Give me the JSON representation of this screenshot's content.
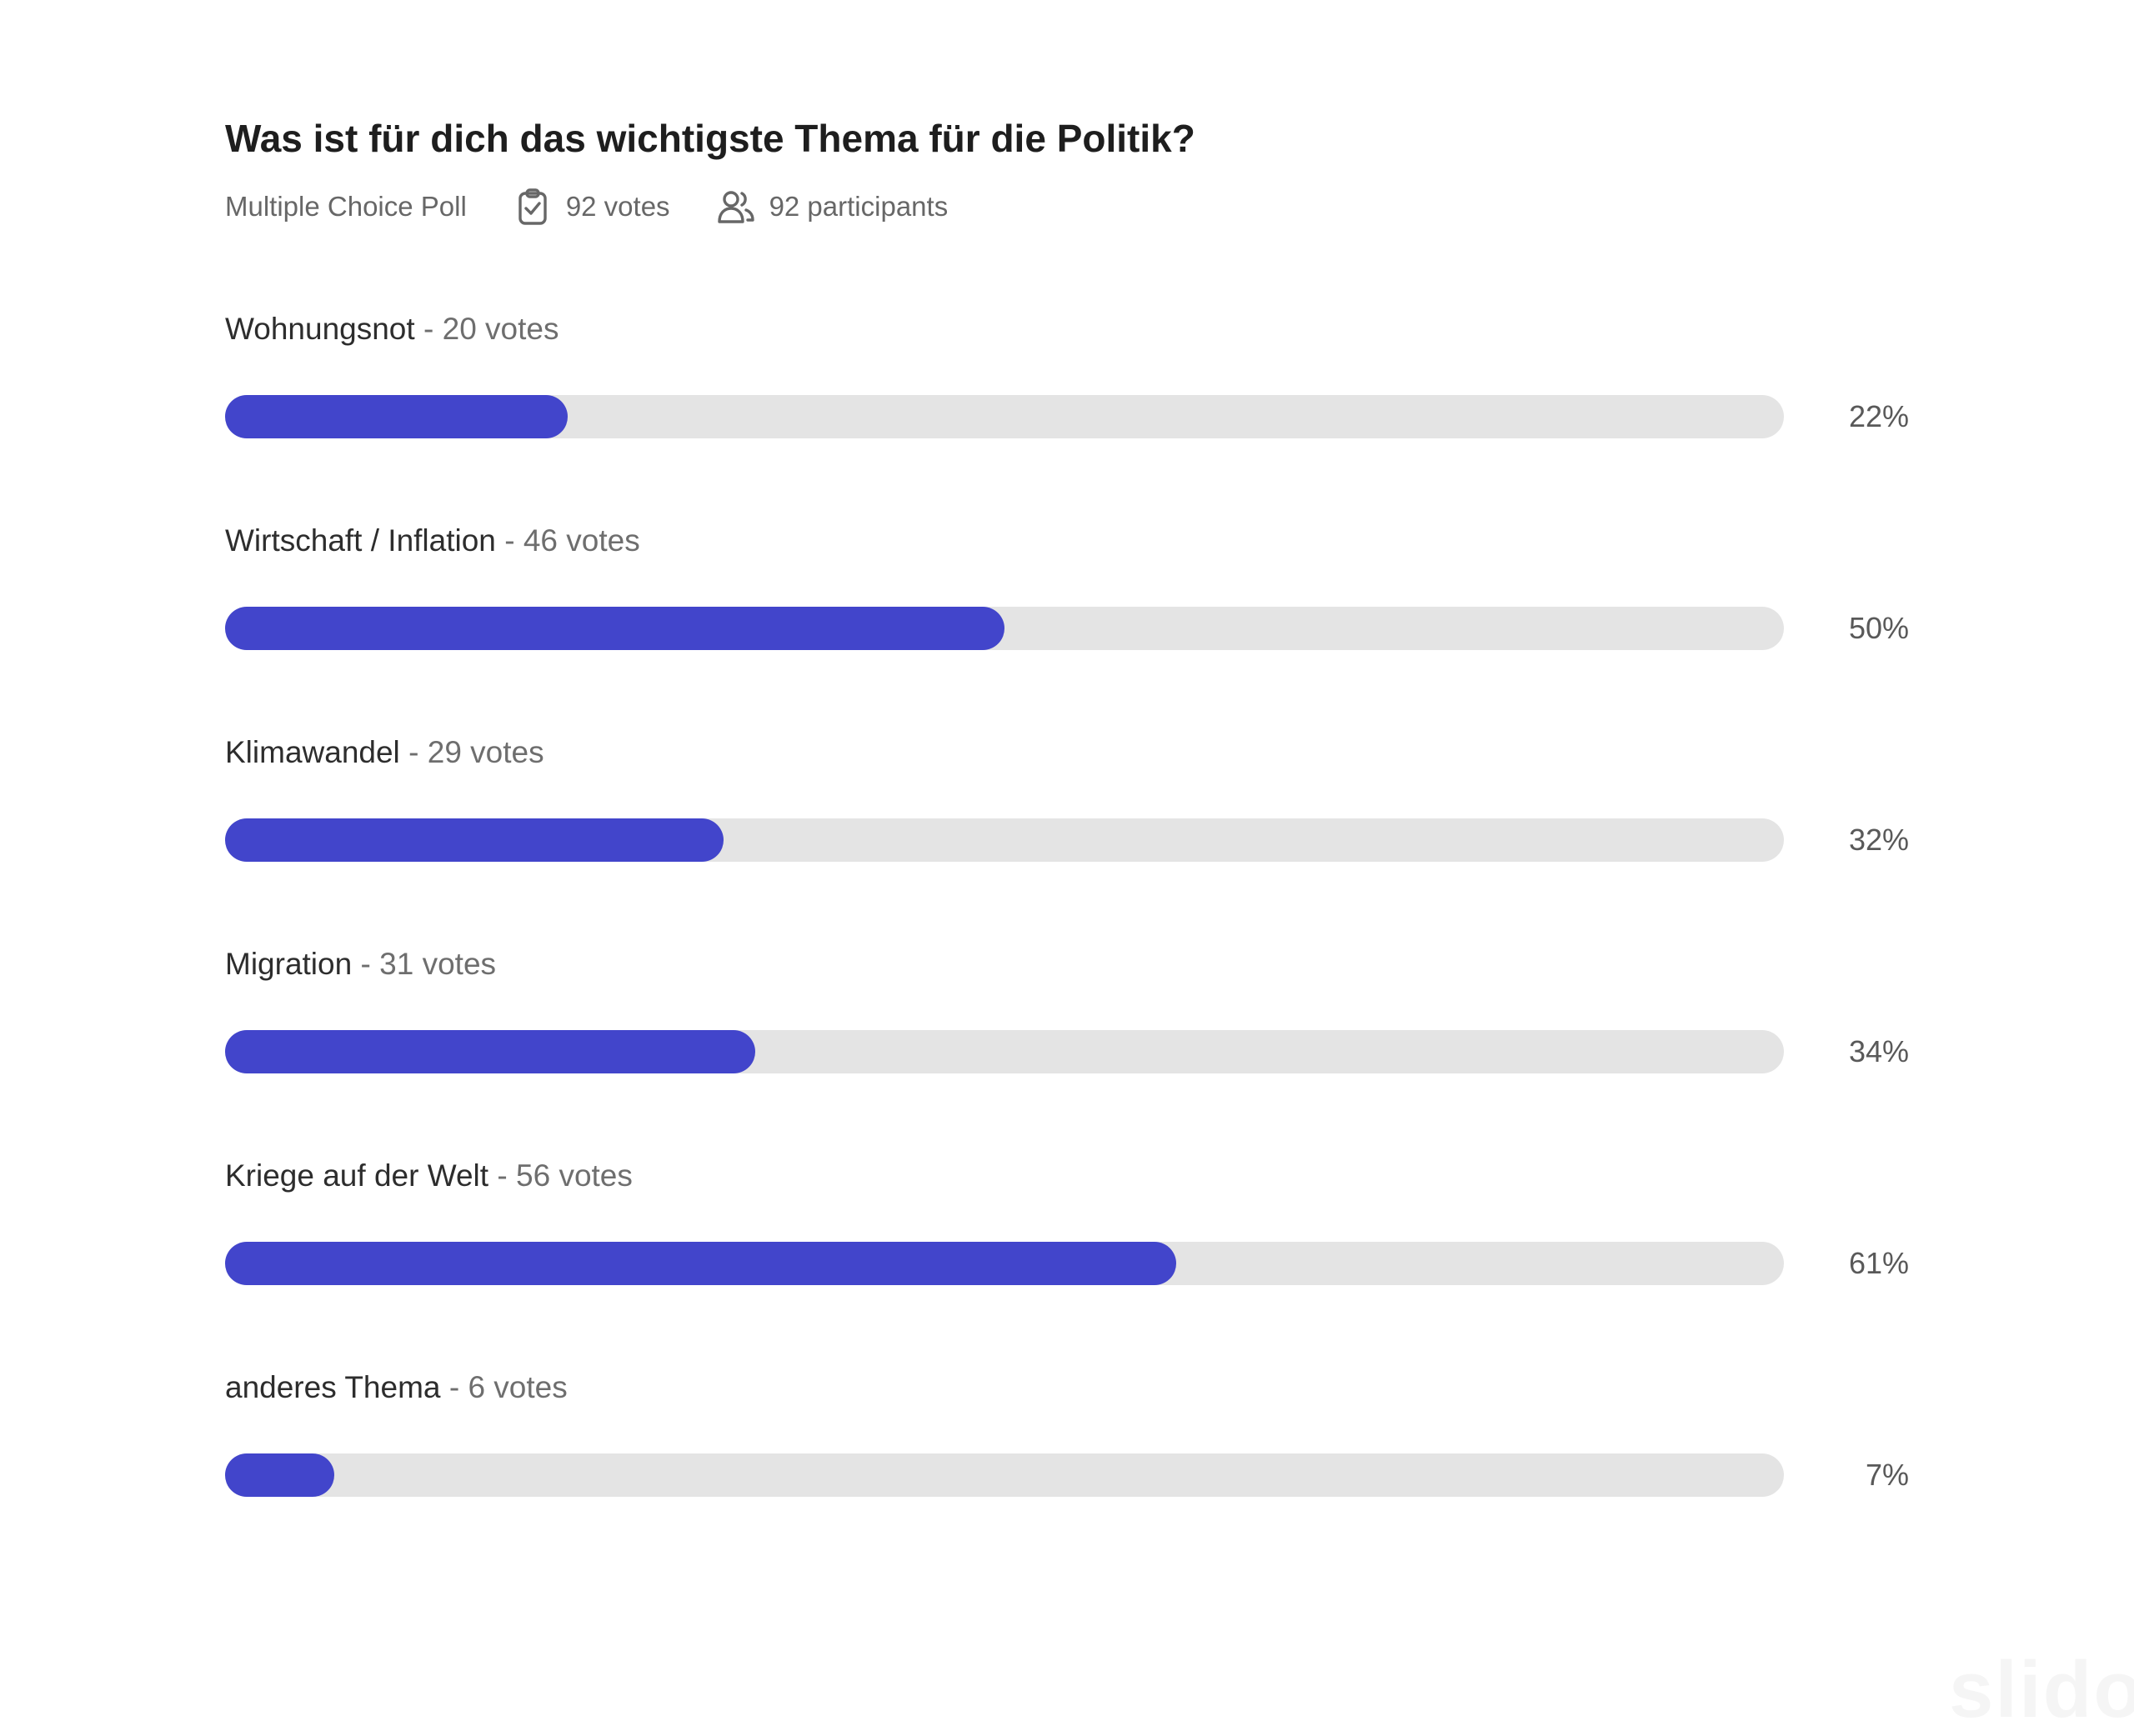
{
  "poll": {
    "title": "Was ist für dich das wichtigste Thema für die Politik?",
    "type_label": "Multiple Choice Poll",
    "votes_label": "92 votes",
    "participants_label": "92 participants",
    "options": [
      {
        "name": "Wohnungsnot",
        "votes": "- 20 votes",
        "percent": 22,
        "percent_label": "22%"
      },
      {
        "name": "Wirtschaft / Inflation",
        "votes": "- 46 votes",
        "percent": 50,
        "percent_label": "50%"
      },
      {
        "name": "Klimawandel",
        "votes": "- 29 votes",
        "percent": 32,
        "percent_label": "32%"
      },
      {
        "name": "Migration",
        "votes": "- 31 votes",
        "percent": 34,
        "percent_label": "34%"
      },
      {
        "name": "Kriege auf der Welt",
        "votes": "- 56 votes",
        "percent": 61,
        "percent_label": "61%"
      },
      {
        "name": "anderes Thema",
        "votes": "- 6 votes",
        "percent": 7,
        "percent_label": "7%"
      }
    ]
  },
  "icons": {
    "votes_icon": "clipboard-check-icon",
    "participants_icon": "people-icon"
  },
  "colors": {
    "bar_fill": "#4245cb",
    "bar_track": "#e4e4e4",
    "title_text": "#1e1e1e",
    "muted_text": "#676767"
  },
  "watermark": "slido",
  "chart_data": {
    "type": "bar",
    "orientation": "horizontal",
    "title": "Was ist für dich das wichtigste Thema für die Politik?",
    "subtitle": "Multiple Choice Poll · 92 votes · 92 participants",
    "categories": [
      "Wohnungsnot",
      "Wirtschaft / Inflation",
      "Klimawandel",
      "Migration",
      "Kriege auf der Welt",
      "anderes Thema"
    ],
    "series": [
      {
        "name": "votes",
        "values": [
          20,
          46,
          29,
          31,
          56,
          6
        ]
      },
      {
        "name": "percent",
        "values": [
          22,
          50,
          32,
          34,
          61,
          7
        ]
      }
    ],
    "total_votes": 92,
    "participants": 92,
    "xlabel": "",
    "ylabel": "",
    "xlim": [
      0,
      100
    ],
    "grid": false,
    "legend_position": "none",
    "bar_color": "#4245cb",
    "track_color": "#e4e4e4"
  }
}
